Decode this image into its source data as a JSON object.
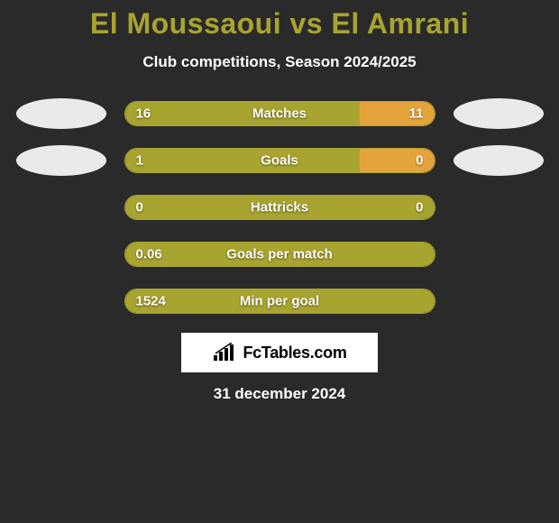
{
  "title": "El Moussaoui vs El Amrani",
  "subtitle": "Club competitions, Season 2024/2025",
  "logo_text": "FcTables.com",
  "date": "31 december 2024",
  "colors": {
    "background": "#2a2a2a",
    "accent": "#a8a430",
    "ellipse": "#eaeaea",
    "bar_left": "#a8a430",
    "bar_right": "#e5a43b",
    "text": "#ffffff"
  },
  "stats": [
    {
      "label": "Matches",
      "left_value": "16",
      "right_value": "11",
      "left_pct": 76,
      "right_pct": 24,
      "show_ellipses": true
    },
    {
      "label": "Goals",
      "left_value": "1",
      "right_value": "0",
      "left_pct": 76,
      "right_pct": 24,
      "show_ellipses": true
    },
    {
      "label": "Hattricks",
      "left_value": "0",
      "right_value": "0",
      "left_pct": 100,
      "right_pct": 0,
      "show_ellipses": false
    },
    {
      "label": "Goals per match",
      "left_value": "0.06",
      "right_value": "",
      "left_pct": 100,
      "right_pct": 0,
      "show_ellipses": false
    },
    {
      "label": "Min per goal",
      "left_value": "1524",
      "right_value": "",
      "left_pct": 100,
      "right_pct": 0,
      "show_ellipses": false
    }
  ]
}
